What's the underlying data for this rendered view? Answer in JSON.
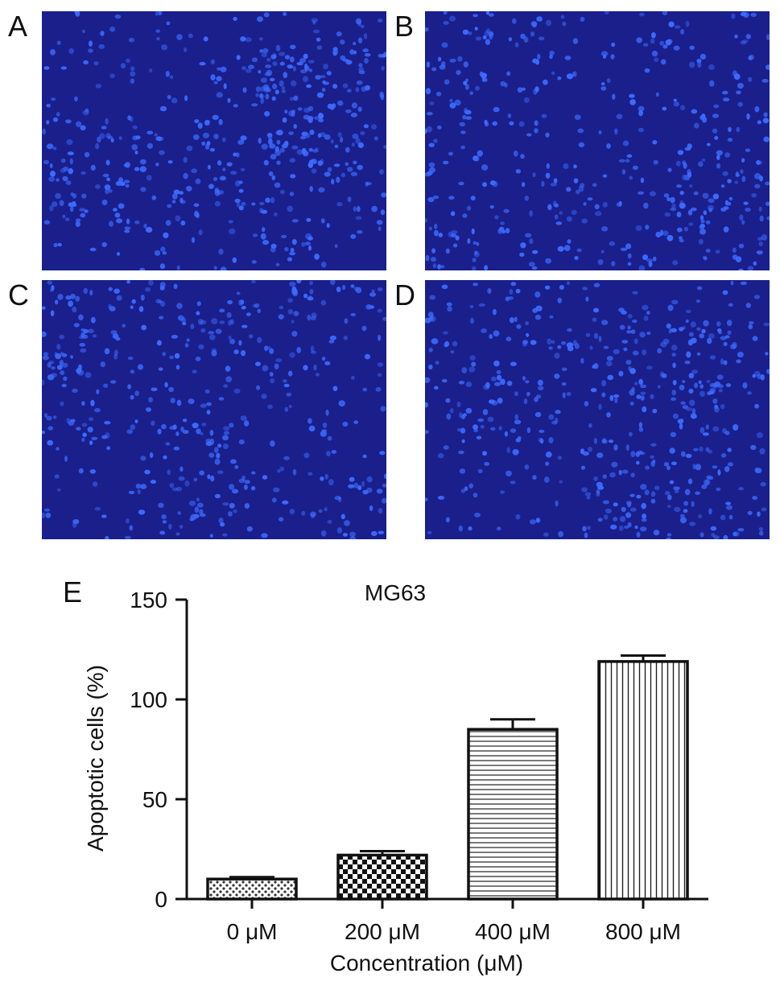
{
  "panels": [
    {
      "label": "A"
    },
    {
      "label": "B"
    },
    {
      "label": "C"
    },
    {
      "label": "D"
    }
  ],
  "chart_panel_label": "E",
  "colors": {
    "micrograph_bg": "#1a1f8c",
    "nucleus": "#3d6bff",
    "bar_stroke": "#111111"
  },
  "chart_data": {
    "type": "bar",
    "title": "MG63",
    "xlabel": "Concentration (μM)",
    "ylabel": "Apoptotic cells (%)",
    "categories": [
      "0 μM",
      "200 μM",
      "400 μM",
      "800 μM"
    ],
    "values": [
      10,
      22,
      85,
      119
    ],
    "errors": [
      1,
      2,
      5,
      3
    ],
    "patterns": [
      "dots",
      "checker",
      "horizontal",
      "vertical"
    ],
    "ylim": [
      0,
      150
    ],
    "yticks": [
      "0",
      "50",
      "100",
      "150"
    ],
    "grid": false
  }
}
